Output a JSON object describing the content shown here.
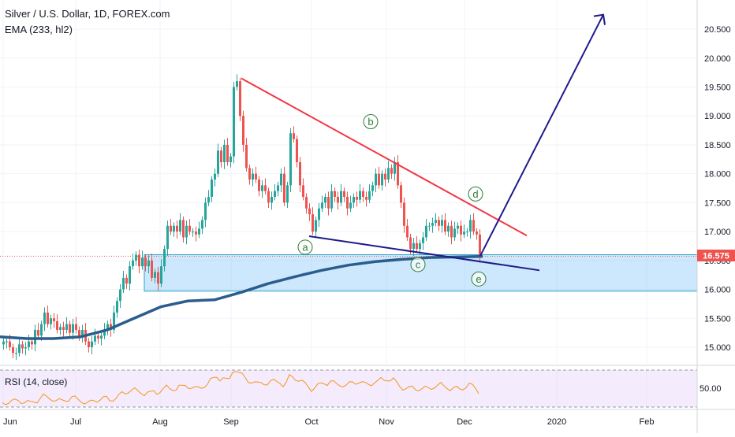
{
  "header": {
    "title": "Silver / U.S. Dollar, 1D, FOREX.com",
    "indicator": "EMA (233, hl2)"
  },
  "rsi": {
    "label": "RSI (14, close)",
    "ticks": [
      "50.00"
    ]
  },
  "price": {
    "current": "16.575"
  },
  "chart_data": {
    "type": "candlestick",
    "x_ticks": [
      "Jun",
      "Jul",
      "Aug",
      "Sep",
      "Oct",
      "Nov",
      "Dec",
      "2020",
      "Feb"
    ],
    "y_ticks": [
      "15.000",
      "15.500",
      "16.000",
      "16.500",
      "17.000",
      "17.500",
      "18.000",
      "18.500",
      "19.000",
      "19.500",
      "20.000",
      "20.500"
    ],
    "ylim": [
      14.7,
      20.9
    ],
    "closes": [
      15.1,
      15.1,
      15.0,
      14.9,
      14.9,
      15.05,
      14.98,
      15.0,
      15.1,
      15.05,
      15.3,
      15.2,
      15.4,
      15.6,
      15.4,
      15.5,
      15.45,
      15.3,
      15.35,
      15.3,
      15.4,
      15.25,
      15.4,
      15.3,
      15.2,
      15.3,
      15.1,
      15.0,
      15.1,
      15.2,
      15.15,
      15.2,
      15.3,
      15.4,
      15.3,
      15.6,
      15.8,
      16.0,
      16.2,
      16.1,
      16.4,
      16.5,
      16.6,
      16.4,
      16.55,
      16.4,
      16.5,
      16.2,
      16.3,
      16.1,
      16.4,
      16.7,
      17.1,
      17.0,
      17.1,
      17.0,
      17.2,
      16.9,
      17.1,
      17.0,
      17.0,
      16.95,
      17.05,
      17.2,
      17.5,
      17.6,
      17.9,
      18.0,
      18.4,
      18.2,
      18.5,
      18.2,
      18.3,
      19.5,
      19.6,
      19.0,
      18.5,
      18.1,
      17.9,
      18.0,
      17.9,
      17.7,
      17.8,
      17.7,
      17.5,
      17.6,
      17.7,
      17.8,
      18.0,
      17.5,
      17.8,
      18.7,
      18.6,
      18.2,
      17.8,
      17.6,
      17.4,
      17.3,
      17.0,
      17.2,
      17.4,
      17.5,
      17.6,
      17.4,
      17.7,
      17.6,
      17.5,
      17.7,
      17.6,
      17.4,
      17.5,
      17.6,
      17.55,
      17.7,
      17.6,
      17.55,
      17.7,
      17.8,
      18.0,
      17.8,
      18.0,
      17.9,
      18.1,
      18.0,
      18.2,
      17.8,
      17.5,
      17.1,
      16.9,
      16.7,
      16.8,
      16.7,
      16.8,
      16.9,
      17.1,
      17.1,
      17.15,
      17.2,
      17.1,
      17.2,
      17.0,
      17.1,
      16.9,
      17.05,
      17.1,
      16.95,
      17.0,
      17.0,
      17.2,
      17.0,
      16.95,
      16.58
    ],
    "ema": [
      [
        0,
        15.18
      ],
      [
        20,
        15.15
      ],
      [
        40,
        15.15
      ],
      [
        60,
        15.18
      ],
      [
        80,
        15.3
      ],
      [
        100,
        15.5
      ],
      [
        120,
        15.7
      ],
      [
        140,
        15.8
      ],
      [
        160,
        15.82
      ],
      [
        180,
        15.95
      ],
      [
        200,
        16.1
      ],
      [
        220,
        16.22
      ],
      [
        240,
        16.33
      ],
      [
        260,
        16.42
      ],
      [
        280,
        16.48
      ],
      [
        300,
        16.52
      ],
      [
        320,
        16.55
      ],
      [
        340,
        16.56
      ],
      [
        360,
        16.57
      ]
    ],
    "zone": {
      "y_top": 16.6,
      "y_bottom": 15.97
    },
    "wave_labels": [
      "a",
      "b",
      "c",
      "d",
      "e"
    ]
  }
}
